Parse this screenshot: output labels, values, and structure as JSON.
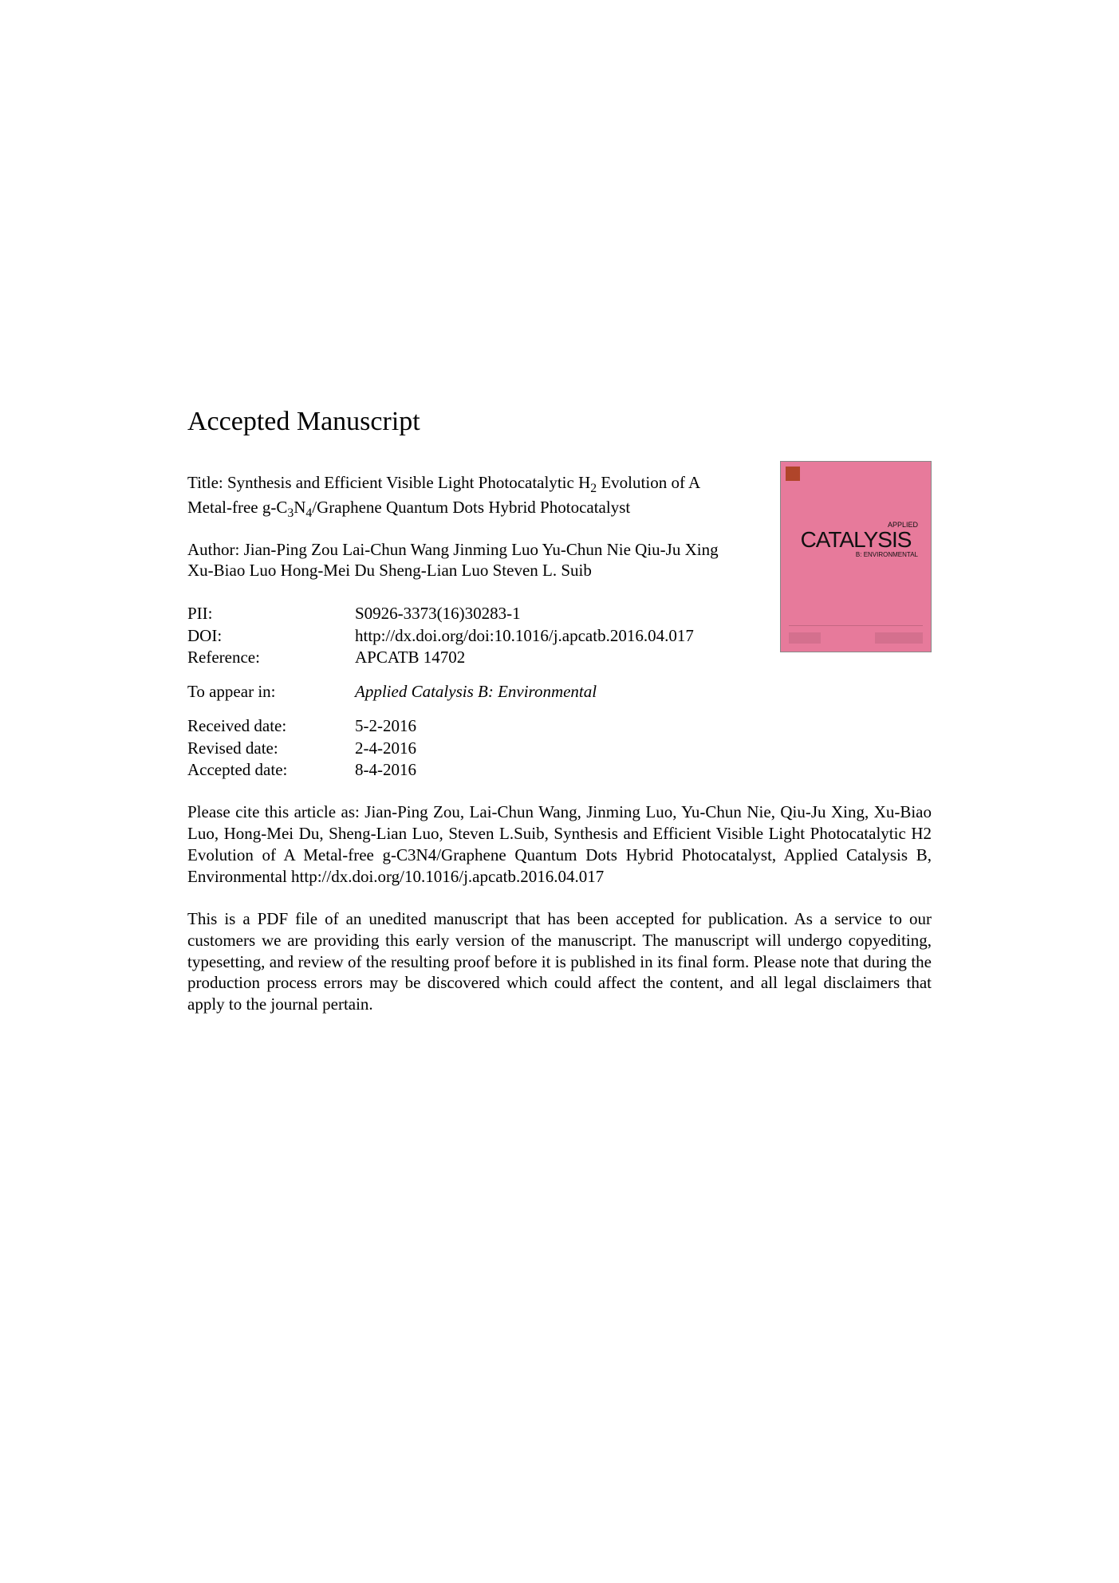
{
  "heading": "Accepted Manuscript",
  "title_prefix": "Title: Synthesis and Efficient Visible Light Photocatalytic H",
  "title_sub1": "2",
  "title_mid": " Evolution of A Metal-free g-C",
  "title_sub2": "3",
  "title_mid2": "N",
  "title_sub3": "4",
  "title_suffix": "/Graphene Quantum Dots Hybrid Photocatalyst",
  "author_prefix": "Author: ",
  "authors": "Jian-Ping Zou Lai-Chun Wang Jinming Luo Yu-Chun Nie Qiu-Ju Xing Xu-Biao Luo Hong-Mei Du Sheng-Lian Luo Steven L. Suib",
  "meta": {
    "pii_label": "PII:",
    "pii_value": "S0926-3373(16)30283-1",
    "doi_label": "DOI:",
    "doi_value": "http://dx.doi.org/doi:10.1016/j.apcatb.2016.04.017",
    "ref_label": "Reference:",
    "ref_value": "APCATB 14702",
    "appear_label": "To appear in:",
    "appear_value": "Applied Catalysis B: Environmental",
    "received_label": "Received date:",
    "received_value": "5-2-2016",
    "revised_label": "Revised date:",
    "revised_value": "2-4-2016",
    "accepted_label": "Accepted date:",
    "accepted_value": "8-4-2016"
  },
  "cite": "Please cite this article as: Jian-Ping Zou, Lai-Chun Wang, Jinming Luo, Yu-Chun Nie, Qiu-Ju Xing, Xu-Biao Luo, Hong-Mei Du, Sheng-Lian Luo, Steven L.Suib, Synthesis and Efficient Visible Light Photocatalytic H2 Evolution of A Metal-free g-C3N4/Graphene Quantum Dots Hybrid Photocatalyst, Applied Catalysis B, Environmental http://dx.doi.org/10.1016/j.apcatb.2016.04.017",
  "disclaimer": "This is a PDF file of an unedited manuscript that has been accepted for publication. As a service to our customers we are providing this early version of the manuscript. The manuscript will undergo copyediting, typesetting, and review of the resulting proof before it is published in its final form. Please note that during the production process errors may be discovered which could affect the content, and all legal disclaimers that apply to the journal pertain.",
  "cover": {
    "applied": "APPLIED",
    "catalysis": "CATALYSIS",
    "sub": "B: ENVIRONMENTAL"
  }
}
